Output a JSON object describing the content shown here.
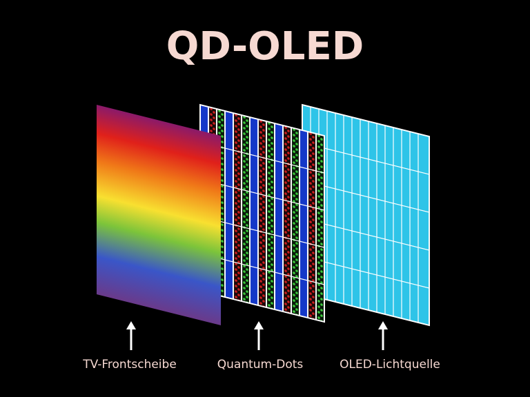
{
  "title": "QD-OLED",
  "layers": [
    {
      "label": "TV-Frontscheibe"
    },
    {
      "label": "Quantum-Dots"
    },
    {
      "label": "OLED-Lichtquelle"
    }
  ]
}
